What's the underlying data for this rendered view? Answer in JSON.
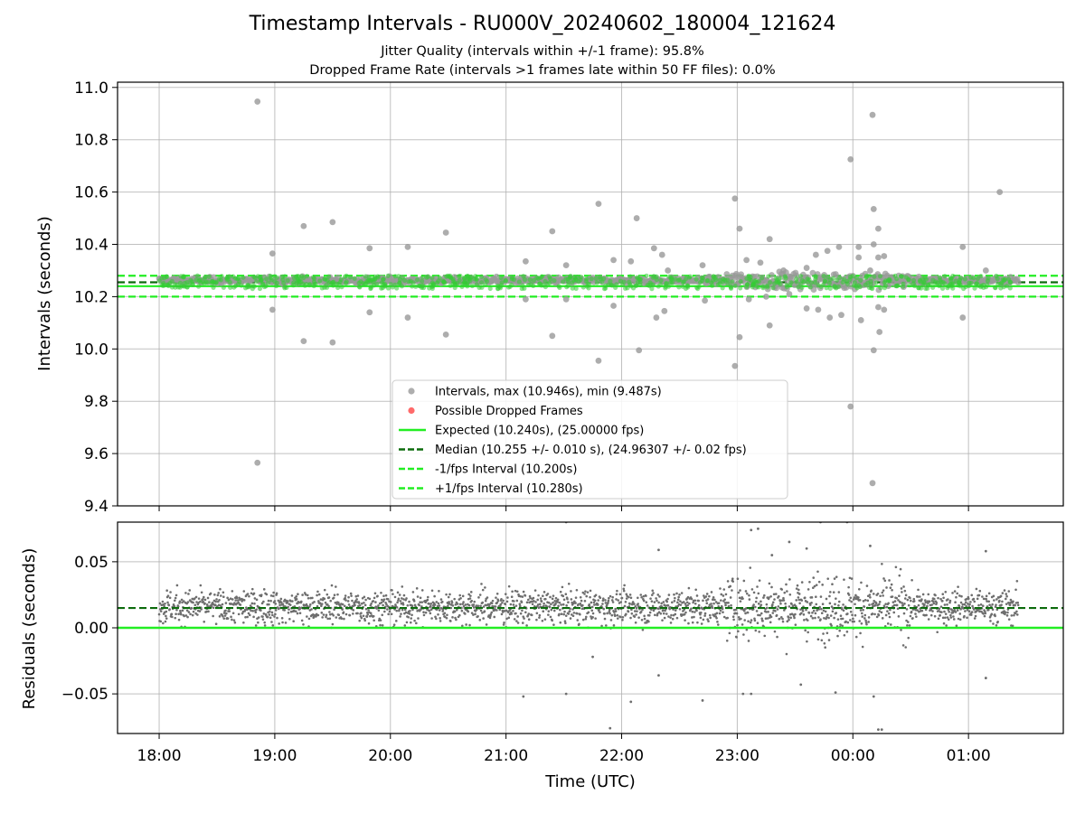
{
  "chart_data": [
    {
      "type": "scatter",
      "title": "Timestamp Intervals - RU000V_20240602_180004_121624",
      "subtitle": "Jitter Quality (intervals within +/-1 frame): 95.8%",
      "subtitle2": "Dropped Frame Rate (intervals >1 frames late within 50 FF files): 0.0%",
      "ylabel": "Intervals (seconds)",
      "xlabel": "",
      "ylim": [
        9.4,
        11.02
      ],
      "xlim_hours": [
        17.64,
        25.82
      ],
      "grid": true,
      "yticks": [
        "9.4",
        "9.6",
        "9.8",
        "10.0",
        "10.2",
        "10.4",
        "10.6",
        "10.8",
        "11.0"
      ],
      "ytick_values": [
        9.4,
        9.6,
        9.8,
        10.0,
        10.2,
        10.4,
        10.6,
        10.8,
        11.0
      ],
      "legend_position": "lower-center",
      "legend": [
        {
          "label": "Intervals, max (10.946s), min (9.487s)",
          "kind": "marker",
          "color": "#a0a0a0"
        },
        {
          "label": "Possible Dropped Frames",
          "kind": "marker",
          "color": "#ff5050"
        },
        {
          "label": "Expected (10.240s), (25.00000 fps)",
          "kind": "line",
          "color": "#22ee22",
          "dash": "solid"
        },
        {
          "label": "Median (10.255 +/- 0.010 s), (24.96307 +/- 0.02 fps)",
          "kind": "line",
          "color": "#0c6b0c",
          "dash": "dashed"
        },
        {
          "label": "-1/fps Interval (10.200s)",
          "kind": "line",
          "color": "#22ee22",
          "dash": "dashed"
        },
        {
          "label": "+1/fps Interval (10.280s)",
          "kind": "line",
          "color": "#22ee22",
          "dash": "dashed"
        }
      ],
      "reference_lines": {
        "expected": 10.24,
        "median": 10.255,
        "minus_one_fps": 10.2,
        "plus_one_fps": 10.28
      },
      "series_core": {
        "name": "Intervals",
        "x_start_hours": 18.0,
        "x_end_hours": 25.43,
        "typical_min": 10.23,
        "typical_max": 10.28
      },
      "outliers": [
        {
          "x": 18.85,
          "y": 10.946
        },
        {
          "x": 18.85,
          "y": 9.565
        },
        {
          "x": 18.98,
          "y": 10.365
        },
        {
          "x": 18.98,
          "y": 10.15
        },
        {
          "x": 19.25,
          "y": 10.47
        },
        {
          "x": 19.25,
          "y": 10.03
        },
        {
          "x": 19.5,
          "y": 10.485
        },
        {
          "x": 19.5,
          "y": 10.025
        },
        {
          "x": 19.82,
          "y": 10.385
        },
        {
          "x": 19.82,
          "y": 10.14
        },
        {
          "x": 20.15,
          "y": 10.39
        },
        {
          "x": 20.15,
          "y": 10.12
        },
        {
          "x": 20.48,
          "y": 10.445
        },
        {
          "x": 20.48,
          "y": 10.055
        },
        {
          "x": 21.17,
          "y": 10.335
        },
        {
          "x": 21.17,
          "y": 10.19
        },
        {
          "x": 21.4,
          "y": 10.45
        },
        {
          "x": 21.4,
          "y": 10.05
        },
        {
          "x": 21.52,
          "y": 10.32
        },
        {
          "x": 21.52,
          "y": 10.19
        },
        {
          "x": 21.8,
          "y": 10.555
        },
        {
          "x": 21.8,
          "y": 9.955
        },
        {
          "x": 21.93,
          "y": 10.34
        },
        {
          "x": 21.93,
          "y": 10.165
        },
        {
          "x": 22.08,
          "y": 10.335
        },
        {
          "x": 22.13,
          "y": 10.5
        },
        {
          "x": 22.15,
          "y": 9.995
        },
        {
          "x": 22.28,
          "y": 10.385
        },
        {
          "x": 22.3,
          "y": 10.12
        },
        {
          "x": 22.35,
          "y": 10.36
        },
        {
          "x": 22.37,
          "y": 10.145
        },
        {
          "x": 22.4,
          "y": 10.3
        },
        {
          "x": 22.7,
          "y": 10.32
        },
        {
          "x": 22.72,
          "y": 10.185
        },
        {
          "x": 22.98,
          "y": 10.575
        },
        {
          "x": 22.98,
          "y": 9.935
        },
        {
          "x": 23.02,
          "y": 10.46
        },
        {
          "x": 23.02,
          "y": 10.045
        },
        {
          "x": 23.08,
          "y": 10.34
        },
        {
          "x": 23.1,
          "y": 10.19
        },
        {
          "x": 23.2,
          "y": 10.33
        },
        {
          "x": 23.25,
          "y": 10.2
        },
        {
          "x": 23.28,
          "y": 10.42
        },
        {
          "x": 23.28,
          "y": 10.09
        },
        {
          "x": 23.4,
          "y": 10.3
        },
        {
          "x": 23.45,
          "y": 10.21
        },
        {
          "x": 23.6,
          "y": 10.31
        },
        {
          "x": 23.6,
          "y": 10.155
        },
        {
          "x": 23.68,
          "y": 10.36
        },
        {
          "x": 23.7,
          "y": 10.15
        },
        {
          "x": 23.78,
          "y": 10.375
        },
        {
          "x": 23.8,
          "y": 10.12
        },
        {
          "x": 23.88,
          "y": 10.39
        },
        {
          "x": 23.9,
          "y": 10.13
        },
        {
          "x": 23.98,
          "y": 10.725
        },
        {
          "x": 23.98,
          "y": 9.78
        },
        {
          "x": 24.05,
          "y": 10.39
        },
        {
          "x": 24.05,
          "y": 10.35
        },
        {
          "x": 24.07,
          "y": 10.11
        },
        {
          "x": 24.15,
          "y": 10.3
        },
        {
          "x": 24.17,
          "y": 10.895
        },
        {
          "x": 24.17,
          "y": 9.487
        },
        {
          "x": 24.18,
          "y": 10.535
        },
        {
          "x": 24.18,
          "y": 10.4
        },
        {
          "x": 24.18,
          "y": 9.995
        },
        {
          "x": 24.22,
          "y": 10.46
        },
        {
          "x": 24.22,
          "y": 10.35
        },
        {
          "x": 24.22,
          "y": 10.16
        },
        {
          "x": 24.23,
          "y": 10.065
        },
        {
          "x": 24.27,
          "y": 10.355
        },
        {
          "x": 24.27,
          "y": 10.15
        },
        {
          "x": 24.95,
          "y": 10.39
        },
        {
          "x": 24.95,
          "y": 10.12
        },
        {
          "x": 25.15,
          "y": 10.3
        },
        {
          "x": 25.27,
          "y": 10.6
        }
      ]
    },
    {
      "type": "scatter",
      "ylabel": "Residuals (seconds)",
      "xlabel": "Time (UTC)",
      "ylim": [
        -0.08,
        0.08
      ],
      "grid": true,
      "yticks": [
        "−0.05",
        "0.00",
        "0.05"
      ],
      "ytick_values": [
        -0.05,
        0.0,
        0.05
      ],
      "xticks": [
        "18:00",
        "19:00",
        "20:00",
        "21:00",
        "22:00",
        "23:00",
        "00:00",
        "01:00"
      ],
      "xtick_values_hours": [
        18,
        19,
        20,
        21,
        22,
        23,
        24,
        25
      ],
      "reference_lines": {
        "zero": 0.0,
        "median_offset": 0.015
      },
      "series_core": {
        "name": "Residuals",
        "x_start_hours": 18.0,
        "x_end_hours": 25.43,
        "typical_min": -0.005,
        "typical_max": 0.035
      },
      "outliers": [
        {
          "x": 21.15,
          "y": -0.052
        },
        {
          "x": 21.52,
          "y": -0.05
        },
        {
          "x": 21.52,
          "y": 0.08
        },
        {
          "x": 21.75,
          "y": -0.022
        },
        {
          "x": 21.9,
          "y": -0.076
        },
        {
          "x": 22.08,
          "y": -0.056
        },
        {
          "x": 22.32,
          "y": 0.059
        },
        {
          "x": 22.32,
          "y": -0.036
        },
        {
          "x": 22.7,
          "y": -0.055
        },
        {
          "x": 22.72,
          "y": 0.081
        },
        {
          "x": 23.05,
          "y": -0.05
        },
        {
          "x": 23.12,
          "y": -0.05
        },
        {
          "x": 23.12,
          "y": 0.074
        },
        {
          "x": 23.18,
          "y": 0.075
        },
        {
          "x": 23.3,
          "y": 0.055
        },
        {
          "x": 23.45,
          "y": 0.065
        },
        {
          "x": 23.55,
          "y": -0.043
        },
        {
          "x": 23.6,
          "y": 0.06
        },
        {
          "x": 23.72,
          "y": 0.08
        },
        {
          "x": 23.85,
          "y": -0.049
        },
        {
          "x": 23.95,
          "y": 0.08
        },
        {
          "x": 24.15,
          "y": 0.062
        },
        {
          "x": 24.18,
          "y": -0.052
        },
        {
          "x": 24.22,
          "y": -0.077
        },
        {
          "x": 24.25,
          "y": -0.077
        },
        {
          "x": 25.15,
          "y": 0.058
        },
        {
          "x": 25.15,
          "y": -0.038
        }
      ]
    }
  ]
}
